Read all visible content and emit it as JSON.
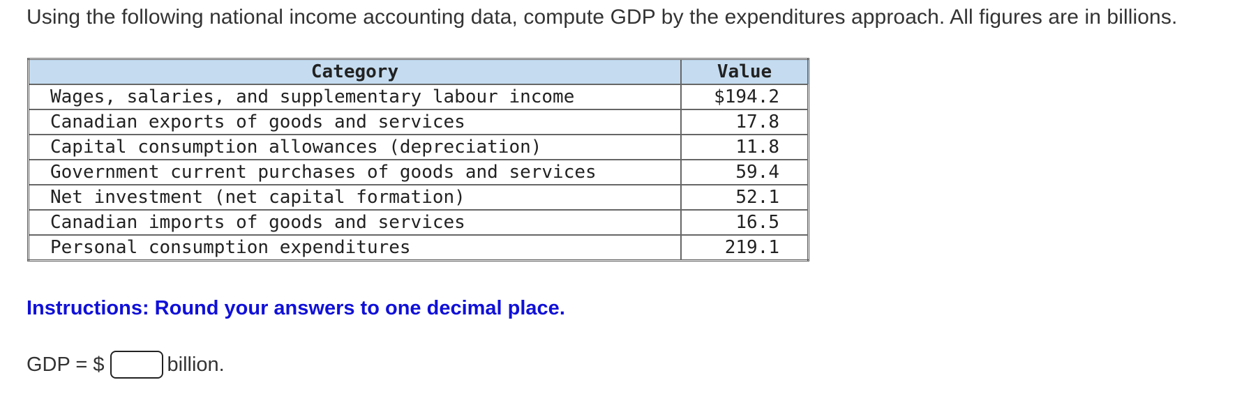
{
  "question": "Using the following national income accounting data, compute GDP by the expenditures approach. All figures are in billions.",
  "table": {
    "headers": [
      "Category",
      "Value"
    ],
    "rows": [
      {
        "category": "Wages, salaries, and supplementary labour income",
        "value": "$194.2"
      },
      {
        "category": "Canadian exports of goods and services",
        "value": "17.8"
      },
      {
        "category": "Capital consumption allowances (depreciation)",
        "value": "11.8"
      },
      {
        "category": "Government current purchases of goods and services",
        "value": "59.4"
      },
      {
        "category": "Net investment (net capital formation)",
        "value": "52.1"
      },
      {
        "category": "Canadian imports of goods and services",
        "value": "16.5"
      },
      {
        "category": "Personal consumption expenditures",
        "value": "219.1"
      }
    ]
  },
  "instructions": "Instructions: Round your answers to one decimal place.",
  "answer": {
    "prefix": "GDP = $",
    "value": "",
    "suffix": "billion."
  }
}
